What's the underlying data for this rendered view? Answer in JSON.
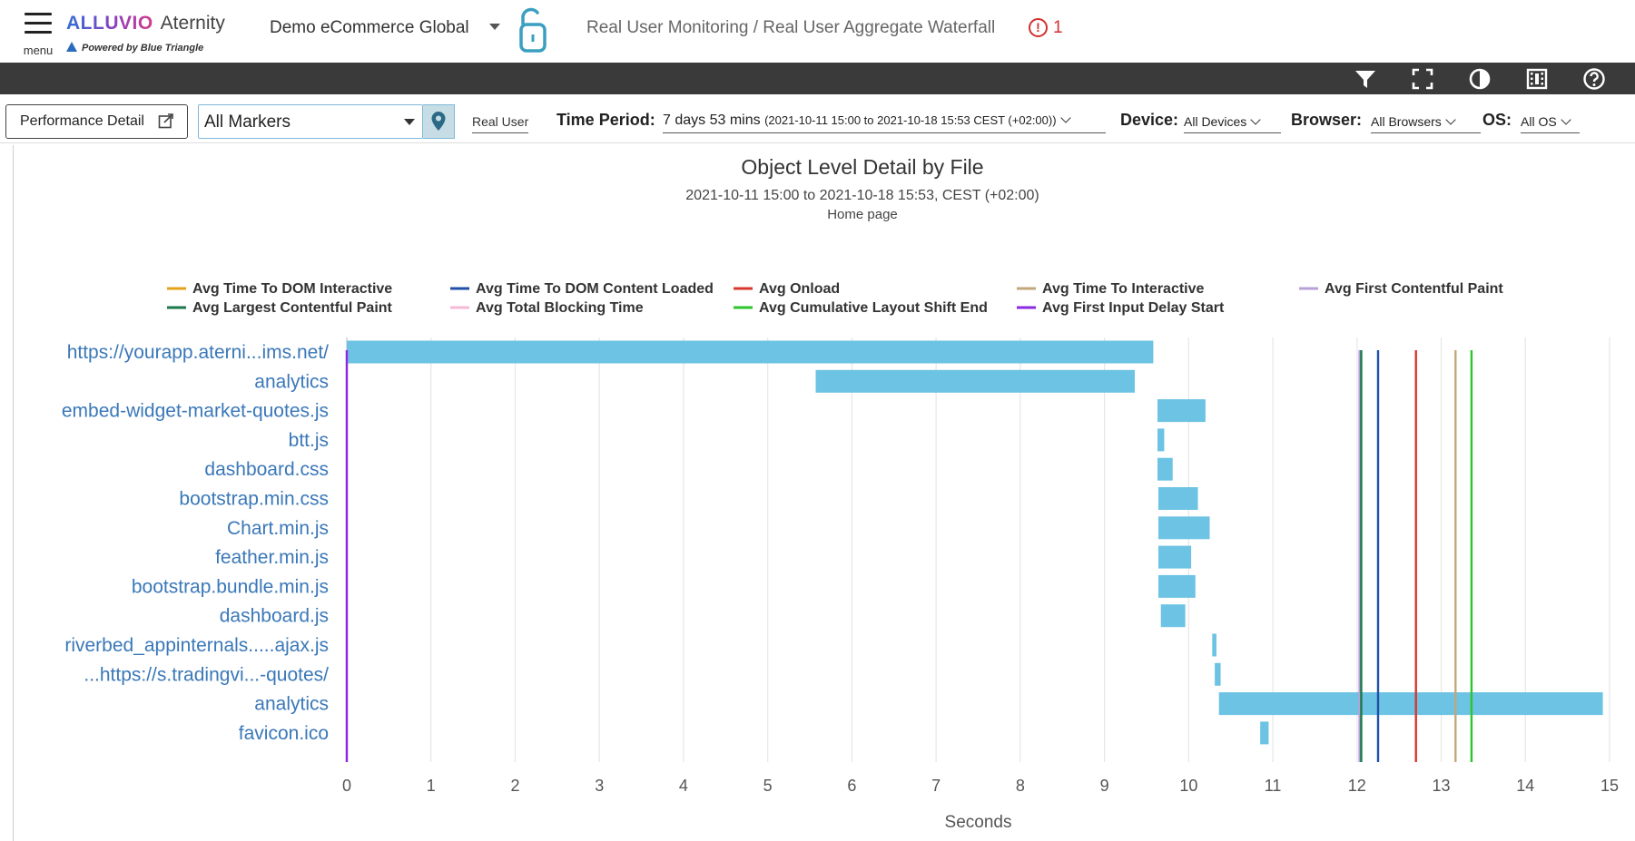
{
  "header": {
    "menu_label": "menu",
    "brand_name": "ALLUVIO",
    "brand_product": "Aternity",
    "powered_by": "Powered by Blue Triangle",
    "app_name": "Demo eCommerce Global",
    "breadcrumb": "Real User Monitoring / Real User Aggregate Waterfall",
    "alert_count": "1",
    "colors": {
      "brand_start": "#2f6fd6",
      "brand_end": "#d43c8a",
      "alert": "#d32f2f",
      "lock": "#3a9fc0"
    }
  },
  "toolbar": {
    "icons": [
      "filter-icon",
      "fullscreen-icon",
      "contrast-icon",
      "video-icon",
      "help-icon"
    ],
    "background": "#3a3a3a"
  },
  "filters": {
    "performance_button": "Performance Detail",
    "marker_select": "All Markers",
    "real_user": "Real User",
    "time_period_label": "Time Period:",
    "time_period_value": "7 days 53 mins",
    "time_period_range": "(2021-10-11 15:00 to 2021-10-18 15:53 CEST (+02:00))",
    "device_label": "Device:",
    "device_value": "All Devices",
    "browser_label": "Browser:",
    "browser_value": "All Browsers",
    "os_label": "OS:",
    "os_value": "All OS"
  },
  "chart_data": {
    "type": "bar",
    "orientation": "horizontal-waterfall",
    "title": "Object Level Detail by File",
    "subtitle": "2021-10-11 15:00 to 2021-10-18 15:53, CEST (+02:00)",
    "subtitle2": "Home page",
    "xlabel": "Seconds",
    "xlim": [
      0,
      15
    ],
    "xticks": [
      0,
      1,
      2,
      3,
      4,
      5,
      6,
      7,
      8,
      9,
      10,
      11,
      12,
      13,
      14,
      15
    ],
    "grid": true,
    "bar_color": "#6cc3e3",
    "categories": [
      "https://yourapp.aterni...ims.net/",
      "analytics",
      "embed-widget-market-quotes.js",
      "btt.js",
      "dashboard.css",
      "bootstrap.min.css",
      "Chart.min.js",
      "feather.min.js",
      "bootstrap.bundle.min.js",
      "dashboard.js",
      "riverbed_appinternals.....ajax.js",
      "...https://s.tradingvi...-quotes/",
      "analytics",
      "favicon.ico"
    ],
    "bars": [
      {
        "start": 0.0,
        "end": 9.58
      },
      {
        "start": 5.57,
        "end": 9.36
      },
      {
        "start": 9.63,
        "end": 10.2
      },
      {
        "start": 9.63,
        "end": 9.71
      },
      {
        "start": 9.63,
        "end": 9.81
      },
      {
        "start": 9.64,
        "end": 10.11
      },
      {
        "start": 9.64,
        "end": 10.25
      },
      {
        "start": 9.64,
        "end": 10.03
      },
      {
        "start": 9.64,
        "end": 10.08
      },
      {
        "start": 9.67,
        "end": 9.96
      },
      {
        "start": 10.28,
        "end": 10.33
      },
      {
        "start": 10.31,
        "end": 10.38
      },
      {
        "start": 10.36,
        "end": 14.92
      },
      {
        "start": 10.85,
        "end": 10.95
      }
    ],
    "markers": [
      {
        "name": "Avg Time To DOM Interactive",
        "color": "#e3a21a",
        "value": 12.04
      },
      {
        "name": "Avg Time To DOM Content Loaded",
        "color": "#1f4fa8",
        "value": 12.25
      },
      {
        "name": "Avg Onload",
        "color": "#d9352c",
        "value": 12.7
      },
      {
        "name": "Avg Time To Interactive",
        "color": "#c2a77a",
        "value": 13.17
      },
      {
        "name": "Avg First Contentful Paint",
        "color": "#b9a0d6",
        "value": 12.03
      },
      {
        "name": "Avg Largest Contentful Paint",
        "color": "#1a7a4a",
        "value": 12.05
      },
      {
        "name": "Avg Total Blocking Time",
        "color": "#f5b8d6",
        "value": 0.0
      },
      {
        "name": "Avg Cumulative Layout Shift End",
        "color": "#2ec42e",
        "value": 13.36
      },
      {
        "name": "Avg First Input Delay Start",
        "color": "#8a2be2",
        "value": 0.0
      }
    ]
  }
}
